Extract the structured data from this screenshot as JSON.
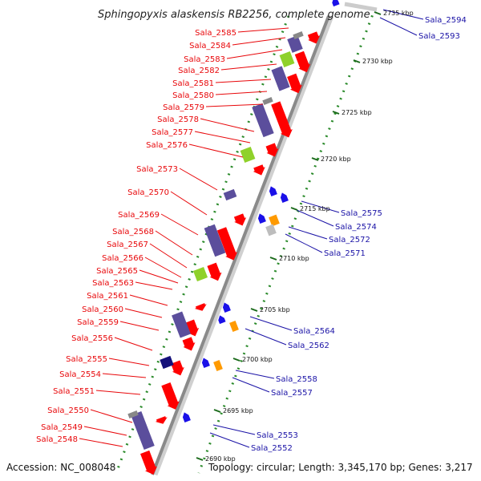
{
  "title": "Sphingopyxis alaskensis RB2256, complete genome",
  "accession": "Accession: NC_008048",
  "topology": "Topology: circular; Length: 3,345,170 bp; Genes: 3,217",
  "colors": {
    "left_label": "#e8070a",
    "right_label": "#1a12a6",
    "cds_forward": "#ff0000",
    "cds_reverse": "#1a10e8",
    "rna_green": "#8fd12a",
    "purple_block": "#5b4e9c",
    "navy_block": "#14107a",
    "orange_block": "#ff9a00",
    "backbone": "#8a8a8a",
    "tick_green": "#2a8a2a"
  },
  "kbp_ticks": [
    "2690 kbp",
    "2695 kbp",
    "2700 kbp",
    "2705 kbp",
    "2710 kbp",
    "2715 kbp",
    "2720 kbp",
    "2725 kbp",
    "2730 kbp",
    "2735 kbp"
  ],
  "left_genes": [
    "Sala_2585",
    "Sala_2584",
    "Sala_2583",
    "Sala_2582",
    "Sala_2581",
    "Sala_2580",
    "Sala_2579",
    "Sala_2578",
    "Sala_2577",
    "Sala_2576",
    "Sala_2573",
    "Sala_2570",
    "Sala_2569",
    "Sala_2568",
    "Sala_2567",
    "Sala_2566",
    "Sala_2565",
    "Sala_2563",
    "Sala_2561",
    "Sala_2560",
    "Sala_2559",
    "Sala_2556",
    "Sala_2555",
    "Sala_2554",
    "Sala_2551",
    "Sala_2550",
    "Sala_2549",
    "Sala_2548"
  ],
  "right_genes": [
    "Sala_2594",
    "Sala_2593",
    "Sala_2575",
    "Sala_2574",
    "Sala_2572",
    "Sala_2571",
    "Sala_2564",
    "Sala_2562",
    "Sala_2558",
    "Sala_2557",
    "Sala_2553",
    "Sala_2552"
  ]
}
